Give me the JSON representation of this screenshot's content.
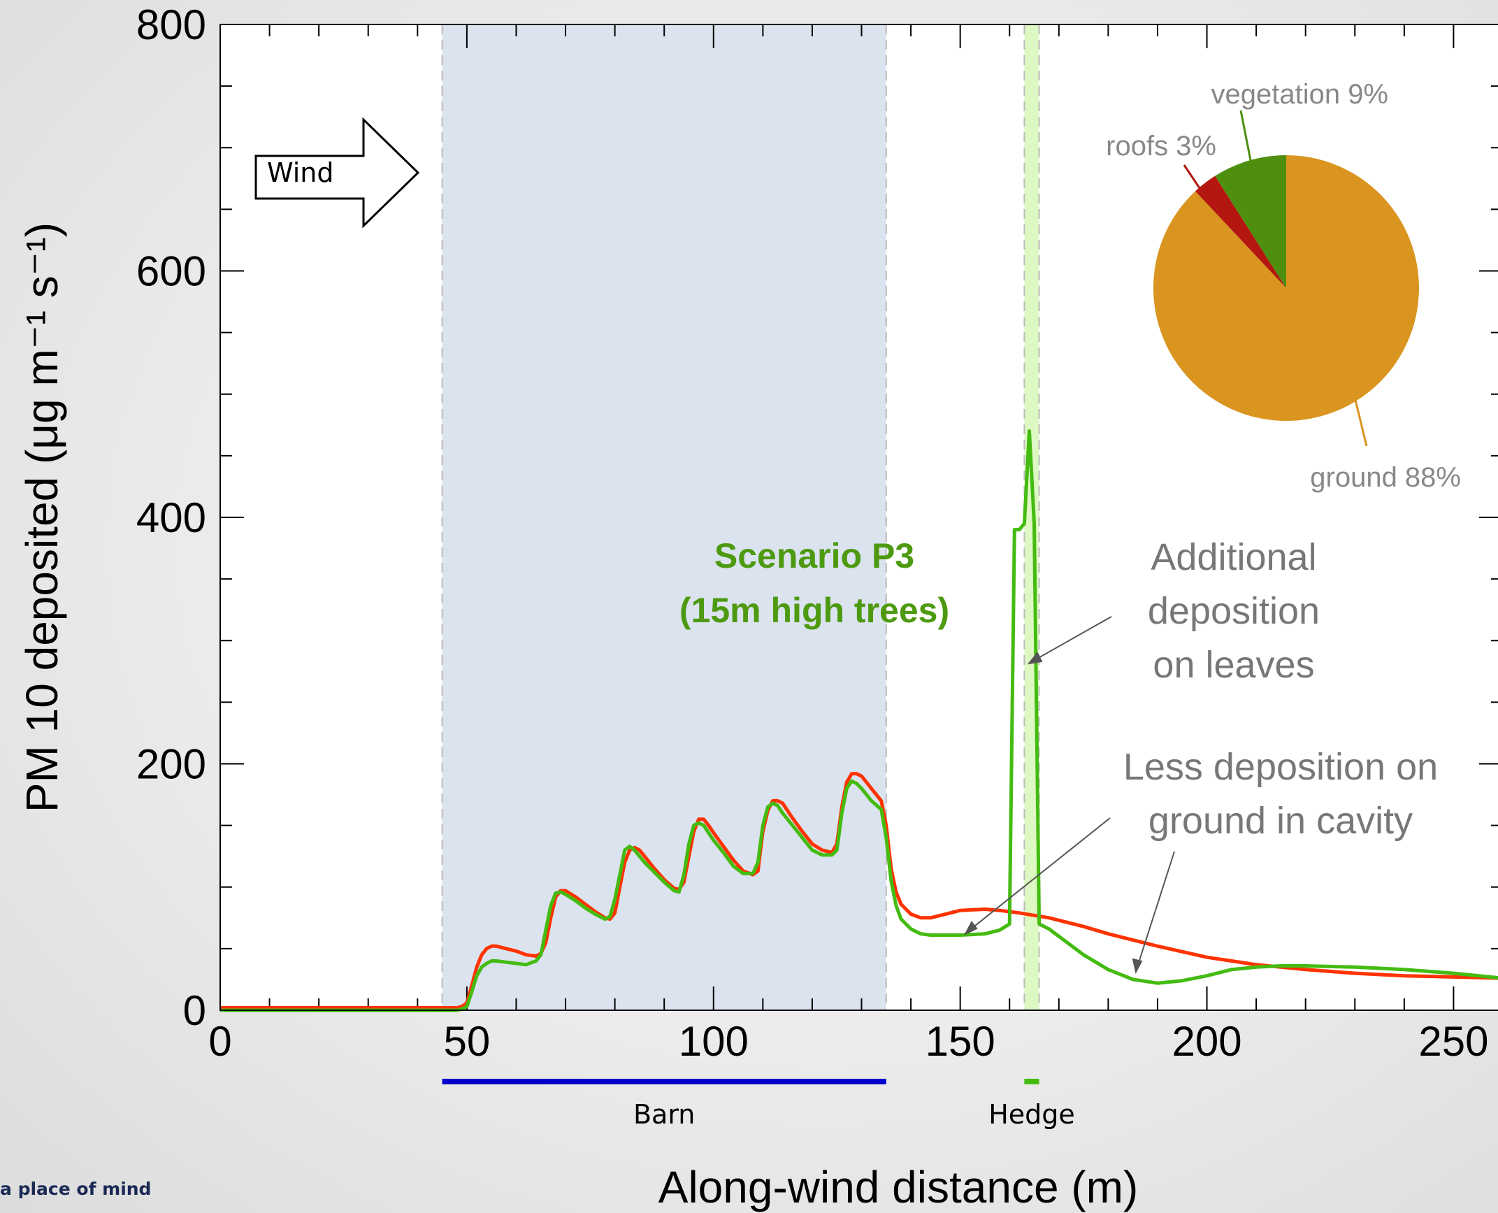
{
  "footer": {
    "tagline": "a place of mind"
  },
  "chart_data": {
    "type": "line",
    "xlabel": "Along-wind distance (m)",
    "ylabel": "PM 10 deposited (μg m⁻¹ s⁻¹)",
    "xlim": [
      0,
      260
    ],
    "ylim": [
      0,
      800
    ],
    "x_ticks": [
      0,
      50,
      100,
      150,
      200,
      250
    ],
    "y_ticks": [
      0,
      200,
      400,
      600,
      800
    ],
    "grid": false,
    "series": [
      {
        "color": "#ff3300",
        "x": [
          0,
          47,
          48,
          49,
          50,
          51,
          52,
          53,
          54,
          55,
          56,
          58,
          60,
          62,
          64,
          65,
          66,
          67,
          68,
          69,
          70,
          72,
          74,
          76,
          78,
          79,
          80,
          81,
          82,
          83,
          84,
          85,
          86,
          88,
          90,
          92,
          93,
          94,
          95,
          96,
          97,
          98,
          99,
          100,
          102,
          104,
          106,
          108,
          109,
          110,
          111,
          112,
          113,
          114,
          115,
          116,
          118,
          120,
          122,
          124,
          125,
          126,
          127,
          128,
          129,
          130,
          131,
          132,
          134,
          135,
          136,
          137,
          138,
          140,
          142,
          144,
          146,
          148,
          150,
          155,
          158,
          160,
          162,
          165,
          168,
          170,
          175,
          180,
          190,
          200,
          210,
          220,
          230,
          240,
          250,
          260
        ],
        "y": [
          2,
          2,
          2,
          3,
          6,
          20,
          35,
          45,
          50,
          52,
          52,
          50,
          48,
          45,
          44,
          46,
          55,
          75,
          92,
          97,
          97,
          92,
          86,
          80,
          75,
          74,
          79,
          100,
          120,
          130,
          132,
          130,
          125,
          115,
          106,
          99,
          98,
          104,
          125,
          145,
          155,
          155,
          150,
          144,
          133,
          122,
          113,
          110,
          113,
          145,
          162,
          170,
          170,
          168,
          162,
          156,
          145,
          135,
          130,
          128,
          135,
          165,
          185,
          192,
          192,
          190,
          185,
          180,
          170,
          150,
          115,
          96,
          86,
          78,
          75,
          75,
          77,
          79,
          81,
          82,
          81,
          80,
          79,
          77,
          75,
          73,
          68,
          62,
          52,
          43,
          37,
          33,
          30,
          28,
          27,
          26
        ]
      },
      {
        "color": "#44bb11",
        "x": [
          0,
          47,
          48,
          49,
          50,
          51,
          52,
          53,
          54,
          55,
          56,
          58,
          60,
          62,
          64,
          65,
          66,
          67,
          68,
          69,
          70,
          72,
          74,
          76,
          78,
          79,
          80,
          81,
          82,
          83,
          84,
          85,
          86,
          88,
          90,
          92,
          93,
          94,
          95,
          96,
          97,
          98,
          99,
          100,
          102,
          104,
          106,
          108,
          109,
          110,
          111,
          112,
          113,
          114,
          115,
          116,
          118,
          120,
          122,
          124,
          125,
          126,
          127,
          128,
          129,
          130,
          131,
          132,
          134,
          135,
          136,
          137,
          138,
          140,
          142,
          144,
          146,
          148,
          150,
          155,
          158,
          160,
          161,
          162,
          163,
          164,
          165,
          166,
          167,
          168,
          170,
          175,
          180,
          185,
          190,
          195,
          200,
          205,
          210,
          215,
          220,
          230,
          240,
          250,
          260
        ],
        "y": [
          0,
          0,
          0,
          1,
          3,
          15,
          28,
          35,
          38,
          40,
          40,
          39,
          38,
          37,
          40,
          45,
          65,
          85,
          95,
          96,
          94,
          89,
          83,
          78,
          74,
          76,
          90,
          110,
          130,
          133,
          130,
          125,
          120,
          112,
          104,
          97,
          96,
          110,
          135,
          150,
          152,
          150,
          144,
          138,
          128,
          117,
          111,
          111,
          120,
          150,
          165,
          168,
          166,
          160,
          155,
          150,
          140,
          130,
          126,
          126,
          130,
          160,
          180,
          186,
          184,
          180,
          175,
          170,
          163,
          140,
          105,
          85,
          74,
          66,
          62,
          61,
          61,
          61,
          61,
          62,
          65,
          70,
          390,
          390,
          395,
          470,
          395,
          70,
          68,
          66,
          60,
          45,
          33,
          25,
          22,
          24,
          28,
          33,
          35,
          36,
          36,
          35,
          33,
          30,
          26
        ]
      }
    ],
    "regions": [
      {
        "label": "Barn",
        "x_start": 45,
        "x_end": 135,
        "fill": "#dbe3ef",
        "bar_color": "#0000cc"
      },
      {
        "label": "Hedge",
        "x_start": 163,
        "x_end": 166,
        "fill": "#ddf8c2",
        "bar_color": "#44bb11"
      }
    ],
    "legend_annotation": {
      "lines": [
        "Scenario P3",
        "(15m high trees)"
      ],
      "color": "#4d9a10"
    },
    "wind_label": "Wind",
    "annotations": [
      {
        "lines": [
          "Additional",
          "deposition",
          "on leaves"
        ],
        "color": "#777777"
      },
      {
        "lines": [
          "Less deposition on",
          "ground in cavity"
        ],
        "color": "#777777"
      }
    ],
    "inset_pie": {
      "type": "pie",
      "slices": [
        {
          "label": "ground 88%",
          "value": 88,
          "color": "#d9951f"
        },
        {
          "label": "roofs 3%",
          "value": 3,
          "color": "#b3170f"
        },
        {
          "label": "vegetation 9%",
          "value": 9,
          "color": "#4e8f10"
        }
      ],
      "label_color": "#888888"
    }
  }
}
